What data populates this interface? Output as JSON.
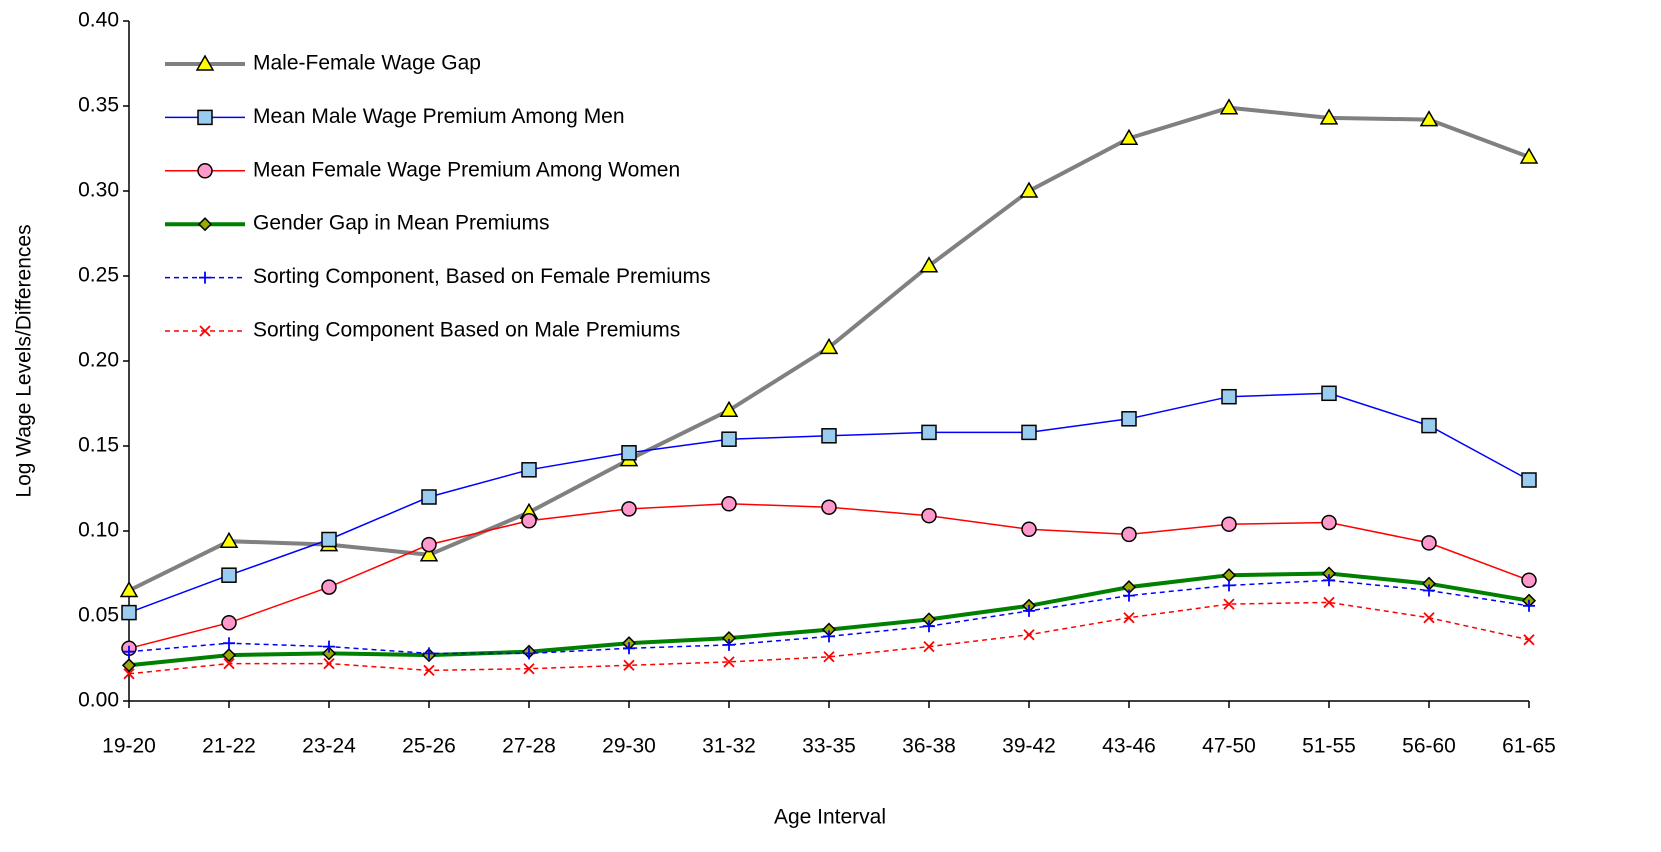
{
  "chart_data": {
    "type": "line",
    "x_label": "Age Interval",
    "y_label": "Log Wage Levels/Differences",
    "categories": [
      "19-20",
      "21-22",
      "23-24",
      "25-26",
      "27-28",
      "29-30",
      "31-32",
      "33-35",
      "36-38",
      "39-42",
      "43-46",
      "47-50",
      "51-55",
      "56-60",
      "61-65"
    ],
    "ylim": [
      0,
      0.4
    ],
    "yticks": [
      {
        "value": 0,
        "label": "0.00"
      },
      0.05,
      {
        "value": 0.1,
        "label": "0.10"
      },
      0.15,
      {
        "value": 0.2,
        "label": "0.20"
      },
      0.25,
      {
        "value": 0.3,
        "label": "0.30"
      },
      0.35,
      {
        "value": 0.4,
        "label": "0.40"
      }
    ],
    "grid": false,
    "legend": "top-left",
    "series": [
      {
        "name": "Male-Female Wage Gap",
        "color": "#808080",
        "line_width": 4,
        "dash": false,
        "marker": "triangle",
        "marker_color": "#ffff00",
        "values": [
          0.065,
          0.094,
          0.092,
          0.086,
          0.111,
          0.142,
          0.171,
          0.208,
          0.256,
          0.3,
          0.331,
          0.349,
          0.343,
          0.342,
          0.32
        ]
      },
      {
        "name": "Mean Male Wage Premium Among Men",
        "color": "#0000ff",
        "line_width": 1.5,
        "dash": false,
        "marker": "square",
        "marker_color": "#99ccee",
        "values": [
          0.052,
          0.074,
          0.095,
          0.12,
          0.136,
          0.146,
          0.154,
          0.156,
          0.158,
          0.158,
          0.166,
          0.179,
          0.181,
          0.162,
          0.13
        ]
      },
      {
        "name": "Mean Female Wage Premium Among Women",
        "color": "#ff0000",
        "line_width": 1.5,
        "dash": false,
        "marker": "circle",
        "marker_color": "#ff99cc",
        "values": [
          0.031,
          0.046,
          0.067,
          0.092,
          0.106,
          0.113,
          0.116,
          0.114,
          0.109,
          0.101,
          0.098,
          0.104,
          0.105,
          0.093,
          0.071
        ]
      },
      {
        "name": "Gender Gap in Mean Premiums",
        "color": "#008000",
        "line_width": 4,
        "dash": false,
        "marker": "diamond",
        "marker_color": "#99aa00",
        "values": [
          0.021,
          0.027,
          0.028,
          0.027,
          0.029,
          0.034,
          0.037,
          0.042,
          0.048,
          0.056,
          0.067,
          0.074,
          0.075,
          0.069,
          0.059
        ]
      },
      {
        "name": "Sorting Component, Based on Female Premiums",
        "color": "#0000ff",
        "line_width": 1.5,
        "dash": true,
        "marker": "plus",
        "marker_color": "#0000ff",
        "values": [
          0.029,
          0.034,
          0.032,
          0.028,
          0.028,
          0.031,
          0.033,
          0.038,
          0.044,
          0.053,
          0.062,
          0.068,
          0.071,
          0.065,
          0.056
        ]
      },
      {
        "name": "Sorting Component Based on Male Premiums",
        "color": "#ff0000",
        "line_width": 1.5,
        "dash": true,
        "marker": "x",
        "marker_color": "#ff0000",
        "values": [
          0.016,
          0.022,
          0.022,
          0.018,
          0.019,
          0.021,
          0.023,
          0.026,
          0.032,
          0.039,
          0.049,
          0.057,
          0.058,
          0.049,
          0.036
        ]
      }
    ]
  }
}
